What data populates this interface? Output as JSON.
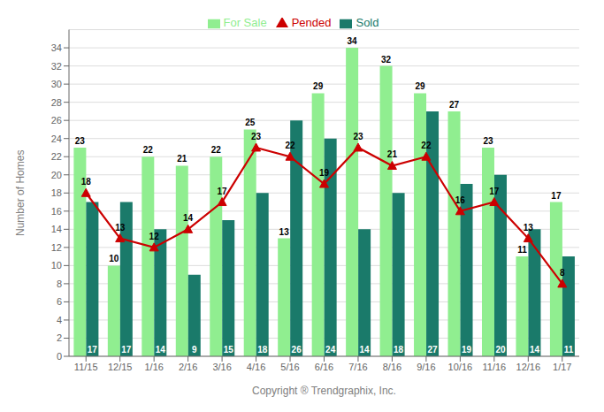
{
  "chart_data": {
    "type": "bar",
    "categories": [
      "11/15",
      "12/15",
      "1/16",
      "2/16",
      "3/16",
      "4/16",
      "5/16",
      "6/16",
      "7/16",
      "8/16",
      "9/16",
      "10/16",
      "11/16",
      "12/16",
      "1/17"
    ],
    "series": [
      {
        "name": "For Sale",
        "type": "bar",
        "color": "#90EE90",
        "values": [
          23,
          10,
          22,
          21,
          22,
          25,
          13,
          29,
          34,
          32,
          29,
          27,
          23,
          11,
          17
        ]
      },
      {
        "name": "Sold",
        "type": "bar",
        "color": "#1A7A6A",
        "values": [
          17,
          17,
          14,
          9,
          15,
          18,
          26,
          24,
          14,
          18,
          27,
          19,
          20,
          14,
          11
        ]
      },
      {
        "name": "Pended",
        "type": "line",
        "color": "#CC0000",
        "marker": "triangle",
        "values": [
          18,
          13,
          12,
          14,
          17,
          23,
          22,
          19,
          23,
          21,
          22,
          16,
          17,
          13,
          8
        ]
      }
    ],
    "xlabel": "Copyright ® Trendgraphix, Inc.",
    "ylabel": "Number of Homes",
    "ylim": [
      0,
      36
    ],
    "yticks": [
      0,
      2,
      4,
      6,
      8,
      10,
      12,
      14,
      16,
      18,
      20,
      22,
      24,
      26,
      28,
      30,
      32,
      34
    ],
    "grid": true,
    "legend": "top",
    "data_labels": true
  }
}
